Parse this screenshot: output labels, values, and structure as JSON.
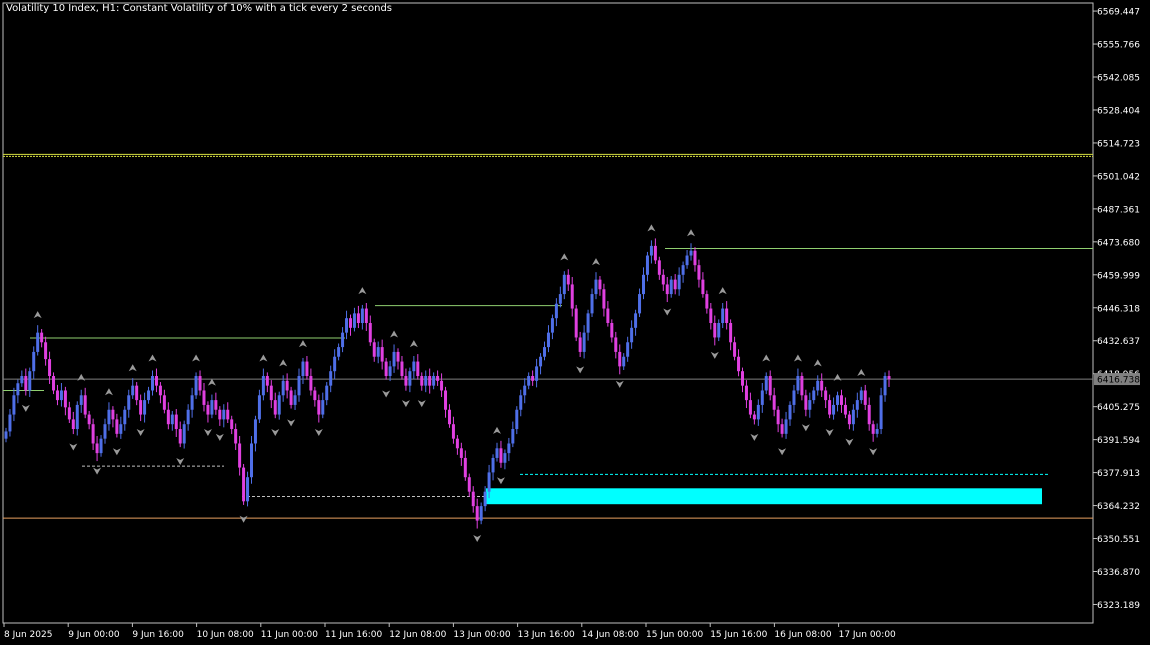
{
  "header": {
    "title": "Volatility 10 Index, H1:  Constant Volatility of 10% with a tick every 2 seconds"
  },
  "colors": {
    "background": "#000000",
    "axis": "#c0c0c0",
    "text": "#ffffff",
    "bull": "#4f6fe8",
    "bear": "#e040e0",
    "level_green": "#90d070",
    "level_yellow": "#d8e040",
    "level_orange": "#e8a060",
    "zone": "#00ffff",
    "fractal": "#9a9a9a"
  },
  "chart_data": {
    "type": "candlestick",
    "ylim": [
      6315.5,
      6572.8
    ],
    "price_ticks": [
      "6569.447",
      "6555.766",
      "6542.085",
      "6528.404",
      "6514.723",
      "6501.042",
      "6487.361",
      "6473.680",
      "6459.999",
      "6446.318",
      "6432.637",
      "6418.956",
      "6405.275",
      "6391.594",
      "6377.913",
      "6364.232",
      "6350.551",
      "6336.870",
      "6323.189"
    ],
    "current_price": "6416.738",
    "x_labels": [
      "8 Jun 2025",
      "9 Jun 00:00",
      "9 Jun 16:00",
      "10 Jun 08:00",
      "11 Jun 00:00",
      "11 Jun 16:00",
      "12 Jun 08:00",
      "13 Jun 00:00",
      "13 Jun 16:00",
      "14 Jun 08:00",
      "15 Jun 00:00",
      "15 Jun 16:00",
      "16 Jun 08:00",
      "17 Jun 00:00"
    ],
    "closes": [
      6395,
      6402,
      6410,
      6415,
      6418,
      6412,
      6420,
      6428,
      6436,
      6432,
      6425,
      6418,
      6412,
      6408,
      6412,
      6405,
      6400,
      6396,
      6406,
      6410,
      6402,
      6398,
      6390,
      6386,
      6392,
      6398,
      6404,
      6400,
      6394,
      6398,
      6404,
      6410,
      6414,
      6408,
      6402,
      6408,
      6412,
      6418,
      6414,
      6410,
      6404,
      6398,
      6402,
      6396,
      6390,
      6398,
      6404,
      6410,
      6418,
      6412,
      6406,
      6402,
      6408,
      6404,
      6400,
      6404,
      6400,
      6396,
      6390,
      6380,
      6366,
      6376,
      6390,
      6400,
      6410,
      6418,
      6414,
      6408,
      6402,
      6410,
      6416,
      6412,
      6406,
      6410,
      6418,
      6424,
      6418,
      6412,
      6408,
      6402,
      6408,
      6414,
      6420,
      6426,
      6430,
      6436,
      6442,
      6438,
      6444,
      6440,
      6446,
      6440,
      6432,
      6426,
      6430,
      6424,
      6418,
      6422,
      6428,
      6424,
      6418,
      6414,
      6420,
      6424,
      6418,
      6414,
      6418,
      6414,
      6418,
      6416,
      6412,
      6404,
      6398,
      6392,
      6388,
      6384,
      6376,
      6370,
      6364,
      6358,
      6364,
      6370,
      6378,
      6384,
      6388,
      6382,
      6386,
      6390,
      6396,
      6404,
      6410,
      6414,
      6418,
      6416,
      6422,
      6426,
      6430,
      6436,
      6442,
      6448,
      6452,
      6460,
      6456,
      6446,
      6434,
      6428,
      6436,
      6444,
      6452,
      6458,
      6454,
      6446,
      6440,
      6434,
      6428,
      6422,
      6426,
      6432,
      6438,
      6444,
      6452,
      6460,
      6468,
      6472,
      6466,
      6460,
      6456,
      6452,
      6458,
      6454,
      6460,
      6464,
      6468,
      6470,
      6464,
      6458,
      6452,
      6446,
      6440,
      6434,
      6440,
      6446,
      6440,
      6432,
      6426,
      6420,
      6414,
      6408,
      6402,
      6400,
      6406,
      6412,
      6418,
      6410,
      6404,
      6398,
      6394,
      6400,
      6406,
      6412,
      6418,
      6410,
      6404,
      6408,
      6412,
      6416,
      6412,
      6408,
      6402,
      6406,
      6410,
      6406,
      6402,
      6398,
      6404,
      6408,
      6412,
      6406,
      6398,
      6394,
      6396,
      6410,
      6418,
      6416.738
    ],
    "level_lines": [
      {
        "price": 6510.0,
        "type": "double"
      },
      {
        "price": 6359.0,
        "type": "solid"
      },
      {
        "price": 6416.7,
        "type": "solid"
      },
      {
        "price": 6470.9,
        "type": "solid"
      },
      {
        "price": 6447.2,
        "type": "solid"
      },
      {
        "price": 6433.8,
        "type": "solid"
      },
      {
        "price": 6412.0,
        "type": "solid"
      },
      {
        "price": 6380.6,
        "type": "dashed"
      },
      {
        "price": 6368.0,
        "type": "dashed"
      },
      {
        "price": 6377.2,
        "type": "dashed"
      }
    ],
    "zone": {
      "low": 6364.8,
      "high": 6371.4
    }
  }
}
